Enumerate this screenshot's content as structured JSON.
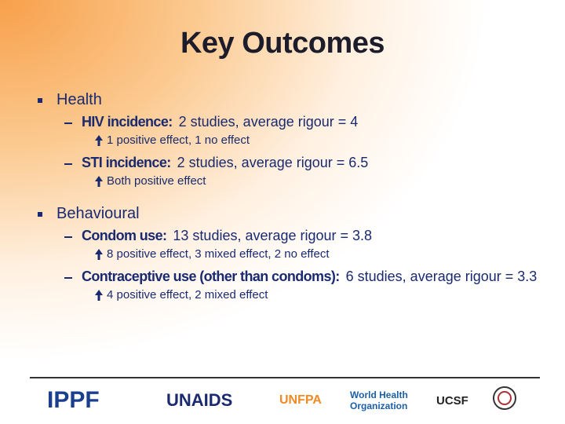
{
  "header": {
    "title": "Key Outcomes"
  },
  "sections": [
    {
      "heading": "Health",
      "items": [
        {
          "label": "HIV incidence:",
          "text": "2 studies, average rigour = 4",
          "detail": "1 positive effect, 1 no effect"
        },
        {
          "label": "STI incidence:",
          "text": "2 studies, average rigour = 6.5",
          "detail": "Both positive effect"
        }
      ]
    },
    {
      "heading": "Behavioural",
      "items": [
        {
          "label": "Condom use:",
          "text": "13 studies, average rigour = 3.8",
          "detail": "8 positive effect, 3 mixed effect, 2 no effect"
        },
        {
          "label": "Contraceptive use (other than condoms):",
          "text": "6 studies, average rigour = 3.3",
          "detail": "4 positive effect, 2 mixed effect"
        }
      ]
    }
  ],
  "logos": [
    "IPPF",
    "UNAIDS",
    "UNFPA",
    "World Health Organization",
    "UCSF"
  ]
}
